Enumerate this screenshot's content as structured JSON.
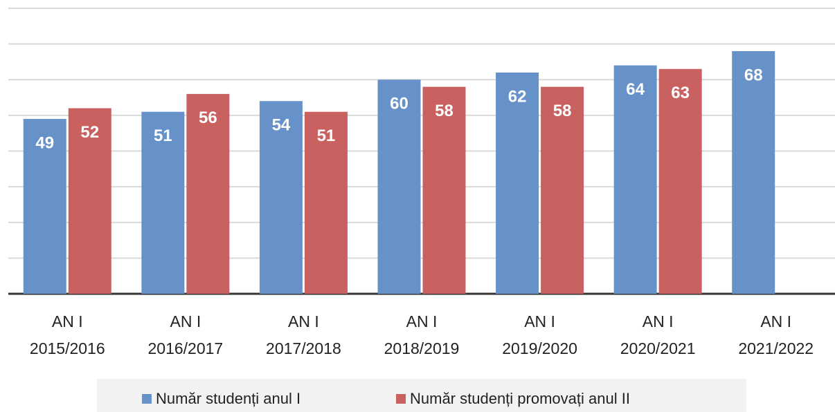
{
  "chart_data": {
    "type": "bar",
    "categories": [
      [
        "AN I",
        "2015/2016"
      ],
      [
        "AN I",
        "2016/2017"
      ],
      [
        "AN I",
        "2017/2018"
      ],
      [
        "AN I",
        "2018/2019"
      ],
      [
        "AN I",
        "2019/2020"
      ],
      [
        "AN I",
        "2020/2021"
      ],
      [
        "AN I",
        "2021/2022"
      ]
    ],
    "series": [
      {
        "name": "Număr studenți anul I",
        "color": "#6692c9",
        "values": [
          49,
          51,
          54,
          60,
          62,
          64,
          68
        ]
      },
      {
        "name": "Număr studenți promovați anul II",
        "color": "#c96160",
        "values": [
          52,
          56,
          51,
          58,
          58,
          63,
          null
        ]
      }
    ],
    "ylim": [
      0,
      80
    ],
    "yticks": [
      0,
      10,
      20,
      30,
      40,
      50,
      60,
      70,
      80
    ],
    "grid": true,
    "legend": "bottom"
  }
}
